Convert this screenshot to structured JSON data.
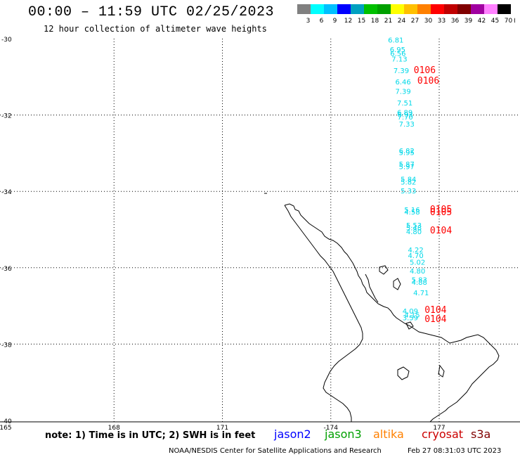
{
  "header": {
    "title": "00:00 – 11:59 UTC 02/25/2023",
    "subtitle": "12 hour collection of altimeter wave heights"
  },
  "colorbar": {
    "colors": [
      "#808080",
      "#00ffff",
      "#00c0ff",
      "#0000ff",
      "#00a0c0",
      "#00c000",
      "#00a000",
      "#ffff00",
      "#ffc000",
      "#ff8000",
      "#ff0000",
      "#c00000",
      "#800000",
      "#a000a0",
      "#ff80ff",
      "#000000"
    ],
    "labels": [
      "3",
      "6",
      "9",
      "12",
      "15",
      "18",
      "21",
      "24",
      "27",
      "30",
      "33",
      "36",
      "39",
      "42",
      "45",
      "70"
    ],
    "unit": "(ft)"
  },
  "axes": {
    "lat_labels": [
      "-30",
      "-32",
      "-34",
      "-36",
      "-38",
      "-40"
    ],
    "lon_labels": [
      "165",
      "168",
      "171",
      "-174",
      "177"
    ]
  },
  "wave_labels": {
    "color": "#00d8e8",
    "items": [
      {
        "text": "6.81",
        "lon": 175.8,
        "lat": -30.1
      },
      {
        "text": "6.95",
        "lon": 175.85,
        "lat": -30.35
      },
      {
        "text": "6.56",
        "lon": 175.86,
        "lat": -30.45
      },
      {
        "text": "7.13",
        "lon": 175.9,
        "lat": -30.6
      },
      {
        "text": "7.39",
        "lon": 175.95,
        "lat": -30.9
      },
      {
        "text": "6.46",
        "lon": 176.0,
        "lat": -31.2
      },
      {
        "text": "7.39",
        "lon": 176.0,
        "lat": -31.45
      },
      {
        "text": "7.51",
        "lon": 176.05,
        "lat": -31.75
      },
      {
        "text": "6.89",
        "lon": 176.05,
        "lat": -32.0
      },
      {
        "text": "6.93",
        "lon": 176.06,
        "lat": -32.05
      },
      {
        "text": "7.70",
        "lon": 176.06,
        "lat": -32.12
      },
      {
        "text": "7.33",
        "lon": 176.1,
        "lat": -32.3
      },
      {
        "text": "6.82",
        "lon": 176.1,
        "lat": -33.0
      },
      {
        "text": "5.95",
        "lon": 176.1,
        "lat": -33.05
      },
      {
        "text": "5.87",
        "lon": 176.1,
        "lat": -33.35
      },
      {
        "text": "5.97",
        "lon": 176.1,
        "lat": -33.42
      },
      {
        "text": "5.84",
        "lon": 176.15,
        "lat": -33.75
      },
      {
        "text": "5.82",
        "lon": 176.15,
        "lat": -33.82
      },
      {
        "text": "5.33",
        "lon": 176.15,
        "lat": -34.05
      },
      {
        "text": "5.16",
        "lon": 176.25,
        "lat": -34.55
      },
      {
        "text": "4.58",
        "lon": 176.25,
        "lat": -34.6
      },
      {
        "text": "5.53",
        "lon": 176.3,
        "lat": -34.95
      },
      {
        "text": "5.48",
        "lon": 176.3,
        "lat": -35.02
      },
      {
        "text": "4.80",
        "lon": 176.3,
        "lat": -35.12
      },
      {
        "text": "4.22",
        "lon": 176.35,
        "lat": -35.6
      },
      {
        "text": "4.70",
        "lon": 176.35,
        "lat": -35.75
      },
      {
        "text": "5.02",
        "lon": 176.4,
        "lat": -35.92
      },
      {
        "text": "4.80",
        "lon": 176.4,
        "lat": -36.15
      },
      {
        "text": "5.83",
        "lon": 176.45,
        "lat": -36.38
      },
      {
        "text": "4.88",
        "lon": 176.45,
        "lat": -36.45
      },
      {
        "text": "4.71",
        "lon": 176.5,
        "lat": -36.72
      },
      {
        "text": "4.09",
        "lon": 176.2,
        "lat": -37.2
      },
      {
        "text": "4.15",
        "lon": 176.25,
        "lat": -37.3
      },
      {
        "text": "3.59",
        "lon": 176.2,
        "lat": -37.38
      }
    ]
  },
  "time_labels": {
    "color": "#ff0000",
    "items": [
      {
        "text": "0106",
        "lon": 176.6,
        "lat": -30.9
      },
      {
        "text": "0106",
        "lon": 176.7,
        "lat": -31.18
      },
      {
        "text": "0105",
        "lon": 177.05,
        "lat": -34.55
      },
      {
        "text": "0105",
        "lon": 177.05,
        "lat": -34.62
      },
      {
        "text": "0104",
        "lon": 177.05,
        "lat": -35.1
      },
      {
        "text": "0104",
        "lon": 176.9,
        "lat": -37.18
      },
      {
        "text": "0104",
        "lon": 176.9,
        "lat": -37.42
      }
    ]
  },
  "footer": {
    "note": "note: 1) Time is in UTC; 2) SWH is in feet",
    "legend": [
      {
        "label": "jason2",
        "color": "#0000ff"
      },
      {
        "label": "jason3",
        "color": "#00a000"
      },
      {
        "label": "altika",
        "color": "#ff8000"
      },
      {
        "label": "cryosat",
        "color": "#cc0000"
      },
      {
        "label": "s3a",
        "color": "#800000"
      }
    ],
    "credit": "NOAA/NESDIS Center for Satellite Applications and Research",
    "timestamp": "Feb 27 08:31:03 UTC 2023"
  }
}
